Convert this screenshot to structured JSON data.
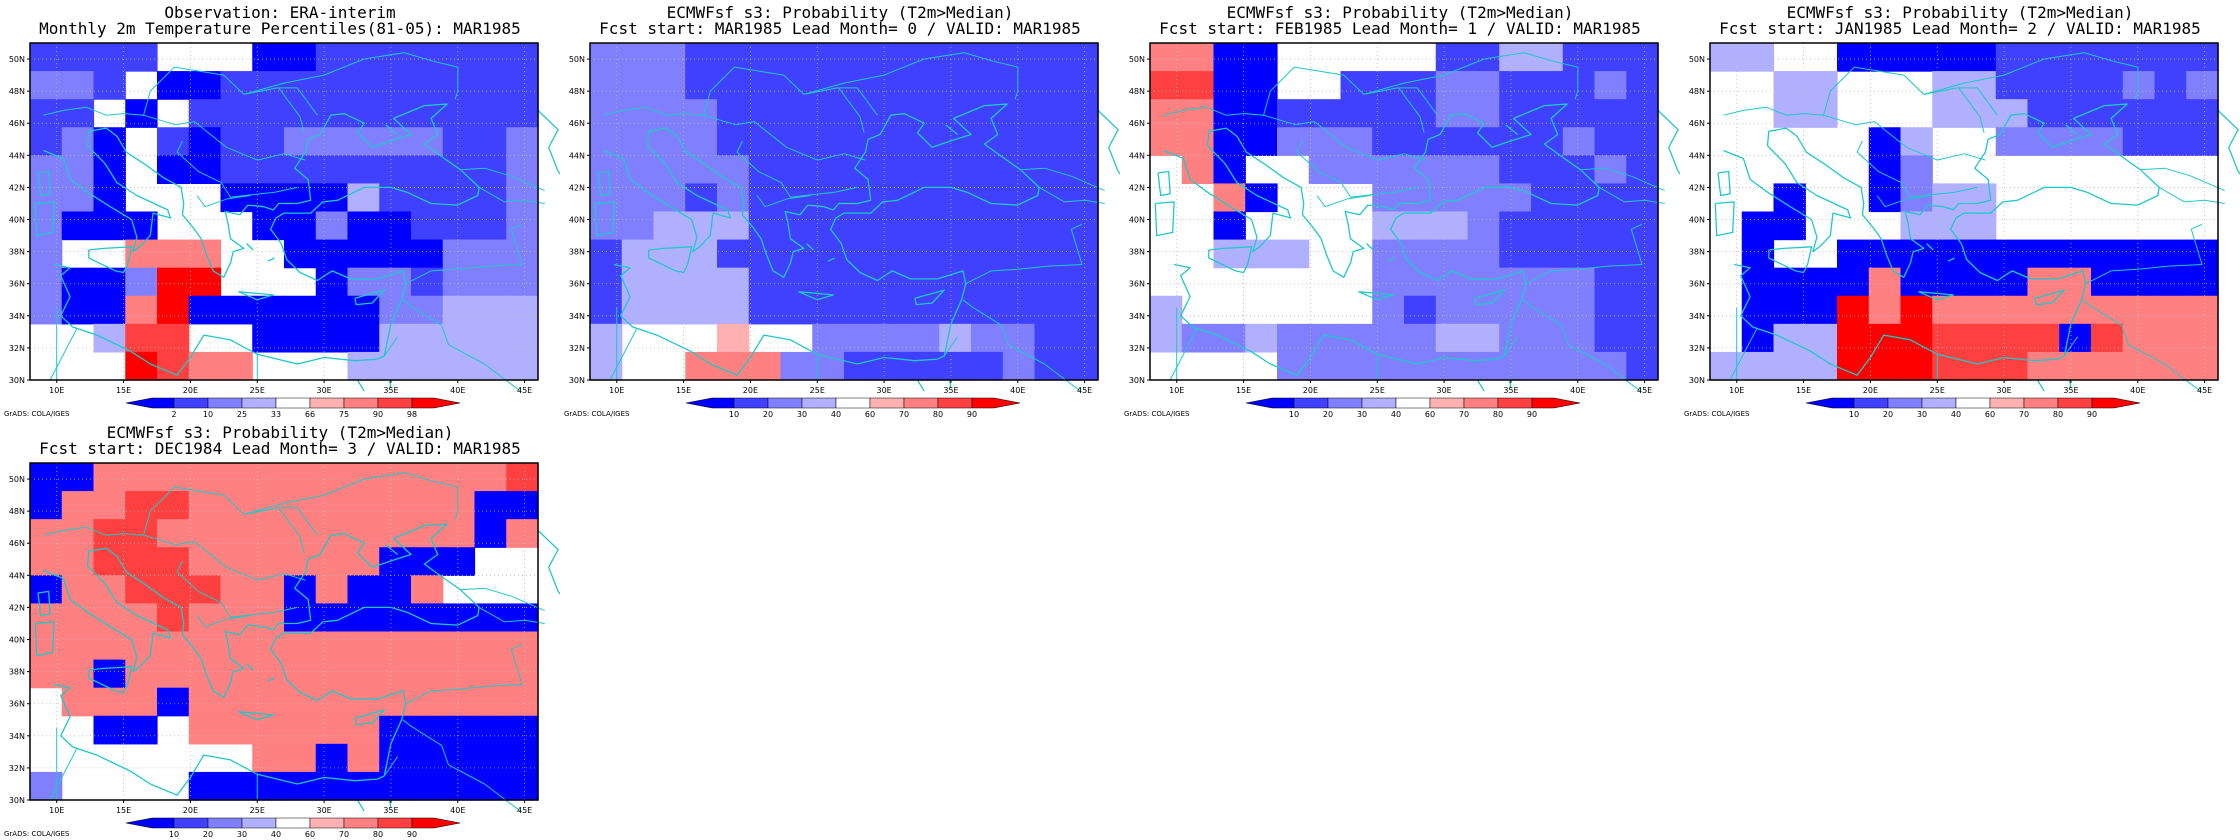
{
  "map": {
    "lat_ticks": [
      "30N",
      "32N",
      "34N",
      "36N",
      "38N",
      "40N",
      "42N",
      "44N",
      "46N",
      "48N",
      "50N"
    ],
    "lon_ticks": [
      "10E",
      "15E",
      "20E",
      "25E",
      "30E",
      "35E",
      "40E",
      "45E"
    ],
    "lon_range": [
      8,
      46
    ],
    "lat_range": [
      30,
      51
    ],
    "coastline_color": "#1fc8c8",
    "grads_credit": "GrADS: COLA/IGES"
  },
  "colors": {
    "bins_obs": [
      "#0000ff",
      "#4040ff",
      "#8080ff",
      "#b0b0ff",
      "#ffffff",
      "#ffb0b0",
      "#ff8080",
      "#ff4040",
      "#ff0000"
    ],
    "bins_prob": [
      "#0000ff",
      "#4040ff",
      "#8080ff",
      "#b0b0ff",
      "#ffffff",
      "#ffb0b0",
      "#ff8080",
      "#ff4040",
      "#ff0000"
    ]
  },
  "panels": [
    {
      "id": "obs",
      "title1": "Observation: ERA-interim",
      "title2": "Monthly 2m Temperature Percentiles(81-05): MAR1985",
      "colorbar_labels": [
        "2",
        "10",
        "25",
        "33",
        "66",
        "75",
        "90",
        "98"
      ],
      "grid": [
        "1111444001111111",
        "2214001111111111",
        "1140411111111111",
        "1204101122222112",
        "2204001111111112",
        "2204440000311112",
        "2000444002001112",
        "2446664400000222",
        "2002884440221222",
        "2006800000022333",
        "4437744000033333",
        "4448766444333333"
      ]
    },
    {
      "id": "lead0",
      "title1": "ECMWFsf s3: Probability (T2m>Median)",
      "title2": "Fcst start: MAR1985  Lead Month= 0 / VALID: MAR1985",
      "colorbar_labels": [
        "10",
        "20",
        "30",
        "40",
        "60",
        "70",
        "80",
        "90"
      ],
      "grid": [
        "2221111111111111",
        "2221111111111111",
        "2222111111111111",
        "2222111111111111",
        "2222211111111111",
        "2221211111111111",
        "2233311111111111",
        "1333111111111111",
        "1333311111111111",
        "1333311111111111",
        "3444544222232211",
        "3446662211111211"
      ]
    },
    {
      "id": "lead1",
      "title1": "ECMWFsf s3: Probability (T2m>Median)",
      "title2": "Fcst start: FEB1985  Lead Month= 1 / VALID: MAR1985",
      "colorbar_labels": [
        "10",
        "20",
        "30",
        "40",
        "60",
        "70",
        "80",
        "90"
      ],
      "grid": [
        "6600444441133111",
        "7700441112211121",
        "6600111112211111",
        "6600222111111211",
        "4604422222211121",
        "4460444222221111",
        "4404444333211111",
        "4433344222211111",
        "4444444222222211",
        "3444444212222211",
        "3223222223322211",
        "4444222222222221"
      ]
    },
    {
      "id": "lead2",
      "title1": "ECMWFsf s3: Probability (T2m>Median)",
      "title2": "Fcst start: JAN1985  Lead Month= 2 / VALID: MAR1985",
      "colorbar_labels": [
        "10",
        "20",
        "30",
        "40",
        "60",
        "70",
        "80",
        "90"
      ],
      "grid": [
        "3344000001111111",
        "4433444331111212",
        "4433444333111111",
        "4444403442222111",
        "4444402444444444",
        "4404402334444444",
        "4004443334444444",
        "4044000000000000",
        "4000060000660000",
        "4000868666666666",
        "4033888777707666",
        "3333888777666666"
      ]
    },
    {
      "id": "lead3",
      "title1": "ECMWFsf s3: Probability (T2m>Median)",
      "title2": "Fcst start: DEC1984  Lead Month= 3 / VALID: MAR1985",
      "colorbar_labels": [
        "10",
        "20",
        "30",
        "40",
        "60",
        "70",
        "80",
        "90"
      ],
      "grid": [
        "0066666666666667",
        "0667766666666600",
        "6677666666666606",
        "6677766666600044",
        "0667776606006444",
        "6666766600000000",
        "6666666666666666",
        "6606666666666666",
        "4666066666666666",
        "4400466666600000",
        "4444444660600000",
        "2444400000000000"
      ]
    }
  ]
}
